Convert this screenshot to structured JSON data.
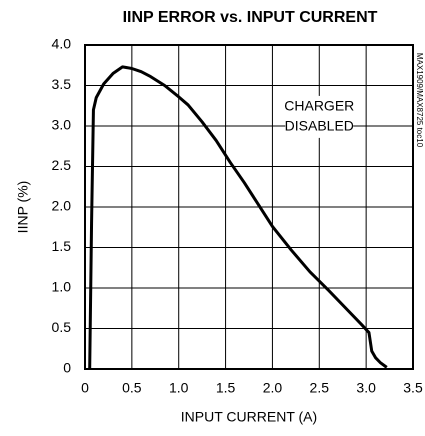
{
  "chart_data": {
    "type": "line",
    "title": "IINP ERROR vs. INPUT CURRENT",
    "xlabel": "INPUT CURRENT (A)",
    "ylabel": "IINP (%)",
    "annotation": [
      "CHARGER",
      "DISABLED"
    ],
    "note": "MAX1909/MAX8725 toc10",
    "x": [
      0.05,
      0.07,
      0.09,
      0.12,
      0.2,
      0.3,
      0.4,
      0.5,
      0.6,
      0.7,
      0.85,
      1.0,
      1.1,
      1.25,
      1.4,
      1.55,
      1.7,
      1.85,
      2.0,
      2.2,
      2.4,
      2.6,
      2.8,
      2.95,
      3.03,
      3.06,
      3.1,
      3.15,
      3.22
    ],
    "series": [
      {
        "name": "IINP",
        "color": "#000000",
        "values": [
          0,
          1.8,
          3.2,
          3.35,
          3.52,
          3.65,
          3.73,
          3.71,
          3.67,
          3.61,
          3.5,
          3.36,
          3.26,
          3.05,
          2.82,
          2.55,
          2.3,
          2.03,
          1.76,
          1.47,
          1.2,
          0.97,
          0.73,
          0.55,
          0.45,
          0.22,
          0.14,
          0.08,
          0.02
        ]
      }
    ],
    "xlim": [
      0,
      3.5
    ],
    "ylim": [
      0,
      4
    ],
    "xticks": [
      0,
      0.5,
      {
        "value": 1,
        "label": "1.0"
      },
      1.5,
      {
        "value": 2,
        "label": "2.0"
      },
      2.5,
      {
        "value": 3,
        "label": "3.0"
      },
      3.5
    ],
    "yticks": [
      0,
      0.5,
      {
        "value": 1,
        "label": "1.0"
      },
      1.5,
      {
        "value": 2,
        "label": "2.0"
      },
      2.5,
      {
        "value": 3,
        "label": "3.0"
      },
      3.5,
      {
        "value": 4,
        "label": "4.0"
      }
    ],
    "grid": true
  }
}
